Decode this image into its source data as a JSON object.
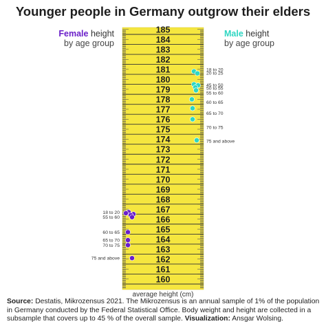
{
  "title": "Younger people in Germany outgrow their elders",
  "legend": {
    "female": {
      "colored": "Female",
      "rest1": " height",
      "line2": "by age group",
      "color": "#6a1fc9"
    },
    "male": {
      "colored": "Male",
      "rest1": " height",
      "line2": "by age group",
      "color": "#2ed6c2"
    }
  },
  "footer": {
    "source_label": "Source:",
    "source_text": " Destatis, Mikrozensus 2021. The Mikrozensus is an annual sample of 1% of the population in Germany conducted by the Federal Statistical Office. Body weight and height are collected in a subsample that covers up to 45 % of the overall sample. ",
    "viz_label": "Visualization:",
    "viz_text": " Ansgar Wolsing."
  },
  "chart_data": {
    "type": "scatter",
    "title": "Younger people in Germany outgrow their elders",
    "xlabel": "",
    "ylabel": "average height (cm)",
    "ylim": [
      160,
      185
    ],
    "ticks": [
      160,
      161,
      162,
      163,
      164,
      165,
      166,
      167,
      168,
      169,
      170,
      171,
      172,
      173,
      174,
      175,
      176,
      177,
      178,
      179,
      180,
      181,
      182,
      183,
      184,
      185
    ],
    "tape_color": "#f5e63f",
    "series": [
      {
        "name": "Female",
        "color": "#6a1fc9",
        "points": [
          {
            "label": "18 to 20",
            "value": 167.2
          },
          {
            "label": "",
            "value": 167.0
          },
          {
            "label": "",
            "value": 166.9
          },
          {
            "label": "",
            "value": 167.1
          },
          {
            "label": "55 to 60",
            "value": 166.7
          },
          {
            "label": "60 to 65",
            "value": 165.2
          },
          {
            "label": "65 to 70",
            "value": 164.4
          },
          {
            "label": "70 to 75",
            "value": 163.9
          },
          {
            "label": "75 and above",
            "value": 162.6
          }
        ]
      },
      {
        "name": "Male",
        "color": "#2ed6c2",
        "points": [
          {
            "label": "18 to 20",
            "value": 181.3
          },
          {
            "label": "20 to 25",
            "value": 181.1
          },
          {
            "label": "",
            "value": 180.0
          },
          {
            "label": "45 to 50",
            "value": 179.9
          },
          {
            "label": "50 to 55",
            "value": 179.7
          },
          {
            "label": "55 to 60",
            "value": 179.4
          },
          {
            "label": "60 to 65",
            "value": 178.5
          },
          {
            "label": "65 to 70",
            "value": 177.6
          },
          {
            "label": "70 to 75",
            "value": 176.5
          },
          {
            "label": "75 and above",
            "value": 174.4
          }
        ]
      }
    ]
  }
}
